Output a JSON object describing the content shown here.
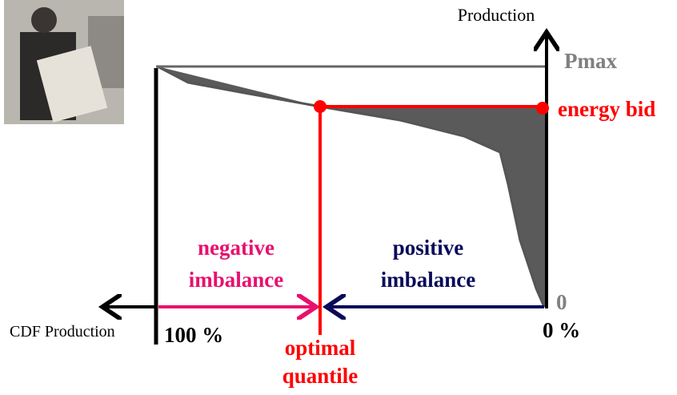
{
  "axis_labels": {
    "y": "Production",
    "x": "CDF Production"
  },
  "y_ticks": {
    "top": "Pmax",
    "bottom": "0"
  },
  "x_ticks": {
    "left": "100 %",
    "right": "0 %"
  },
  "energy_bid": "energy bid",
  "regions": {
    "negative": [
      "negative",
      "imbalance"
    ],
    "positive": [
      "positive",
      "imbalance"
    ]
  },
  "optimal_quantile": [
    "optimal",
    "quantile"
  ]
}
